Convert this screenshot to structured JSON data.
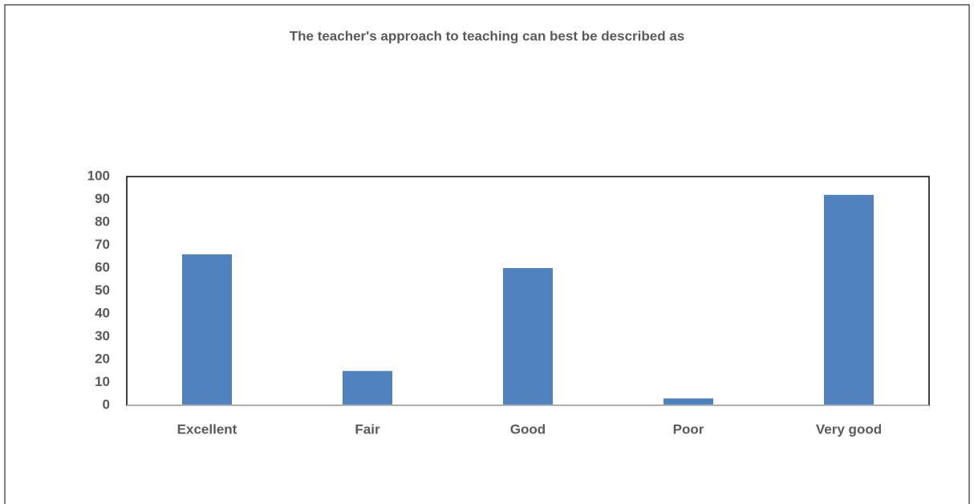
{
  "chart_data": {
    "type": "bar",
    "title": "The teacher's approach to teaching can best be described as",
    "categories": [
      "Excellent",
      "Fair",
      "Good",
      "Poor",
      "Very good"
    ],
    "values": [
      66,
      15,
      60,
      3,
      92
    ],
    "color": "#4f81bd",
    "ylim": [
      0,
      100
    ],
    "yticks": [
      0,
      10,
      20,
      30,
      40,
      50,
      60,
      70,
      80,
      90,
      100
    ],
    "grid": false
  }
}
